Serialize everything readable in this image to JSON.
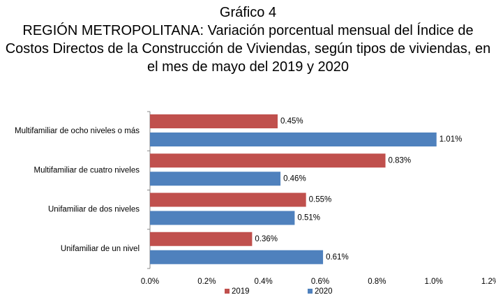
{
  "chart_data": {
    "type": "hbar",
    "title": "Gráfico 4",
    "subtitle": "REGIÓN METROPOLITANA: Variación porcentual mensual del Índice de Costos Directos de la Construcción de Viviendas, según tipos de viviendas, en el mes de mayo del 2019 y 2020",
    "categories": [
      "Multifamiliar de ocho niveles o más",
      "Multifamiliar de cuatro niveles",
      "Unifamiliar de dos niveles",
      "Unifamiliar de un nivel"
    ],
    "series": [
      {
        "name": "2019",
        "color": "#c0504d",
        "values": [
          0.45,
          0.83,
          0.55,
          0.36
        ],
        "value_labels": [
          "0.45%",
          "0.83%",
          "0.55%",
          "0.36%"
        ]
      },
      {
        "name": "2020",
        "color": "#4f81bd",
        "values": [
          1.01,
          0.46,
          0.51,
          0.61
        ],
        "value_labels": [
          "1.01%",
          "0.46%",
          "0.51%",
          "0.61%"
        ]
      }
    ],
    "xlim": [
      0,
      1.2
    ],
    "xticks": [
      {
        "value": 0,
        "label": "0.0%"
      },
      {
        "value": 0.2,
        "label": "0.2%"
      },
      {
        "value": 0.4,
        "label": "0.4%"
      },
      {
        "value": 0.6,
        "label": "0.6%"
      },
      {
        "value": 0.8,
        "label": "0.8%"
      },
      {
        "value": 1.0,
        "label": "1.0%"
      },
      {
        "value": 1.2,
        "label": "1.2%"
      }
    ],
    "legend": "bottom"
  }
}
